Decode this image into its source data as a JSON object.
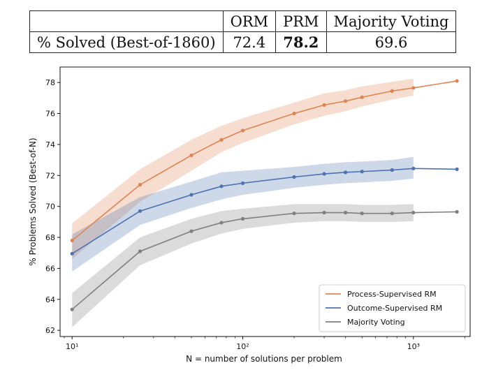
{
  "results_table": {
    "columns": [
      "ORM",
      "PRM",
      "Majority Voting"
    ],
    "row_label": "% Solved (Best-of-1860)",
    "values": [
      "72.4",
      "78.2",
      "69.6"
    ],
    "bold_column": "PRM"
  },
  "chart_data": {
    "type": "line",
    "xlabel": "N = number of solutions per problem",
    "ylabel": "% Problems Solved (Best-of-N)",
    "xscale": "log",
    "xlim": [
      8.5,
      2150
    ],
    "ylim": [
      61.6,
      79.0
    ],
    "xticks": [
      10,
      100,
      1000
    ],
    "xtick_labels": [
      "10¹",
      "10²",
      "10³"
    ],
    "yticks": [
      62,
      64,
      66,
      68,
      70,
      72,
      74,
      76,
      78
    ],
    "ytick_labels": [
      "62",
      "64",
      "66",
      "68",
      "70",
      "72",
      "74",
      "76",
      "78"
    ],
    "grid": false,
    "legend_position": "bottom-right",
    "series": [
      {
        "name": "Process-Supervised RM",
        "color": "#dd8452",
        "x": [
          10,
          25,
          50,
          75,
          100,
          200,
          300,
          400,
          500,
          750,
          1000,
          1800
        ],
        "y": [
          67.8,
          71.4,
          73.3,
          74.3,
          74.9,
          76.0,
          76.55,
          76.8,
          77.05,
          77.45,
          77.65,
          78.1
        ],
        "band_low": [
          66.6,
          70.3,
          72.3,
          73.5,
          74.1,
          75.3,
          75.85,
          76.15,
          76.45,
          76.9,
          77.15
        ],
        "band_high": [
          68.9,
          72.4,
          74.3,
          75.2,
          75.7,
          76.7,
          77.3,
          77.5,
          77.75,
          78.05,
          78.25
        ]
      },
      {
        "name": "Outcome-Supervised RM",
        "color": "#4c72b0",
        "x": [
          10,
          25,
          50,
          75,
          100,
          200,
          300,
          400,
          500,
          750,
          1000,
          1800
        ],
        "y": [
          66.95,
          69.7,
          70.75,
          71.3,
          71.5,
          71.9,
          72.1,
          72.2,
          72.25,
          72.35,
          72.45,
          72.4
        ],
        "band_low": [
          65.8,
          68.8,
          69.9,
          70.45,
          70.75,
          71.2,
          71.4,
          71.5,
          71.55,
          71.65,
          71.8
        ],
        "band_high": [
          68.2,
          70.6,
          71.6,
          72.2,
          72.3,
          72.55,
          72.75,
          72.85,
          72.9,
          73.0,
          73.2
        ]
      },
      {
        "name": "Majority Voting",
        "color": "#7f7f7f",
        "x": [
          10,
          25,
          50,
          75,
          100,
          200,
          300,
          400,
          500,
          750,
          1000,
          1800
        ],
        "y": [
          63.35,
          67.1,
          68.4,
          68.95,
          69.2,
          69.55,
          69.6,
          69.6,
          69.55,
          69.55,
          69.6,
          69.65
        ],
        "band_low": [
          62.2,
          66.2,
          67.6,
          68.25,
          68.55,
          68.95,
          69.05,
          69.05,
          69.0,
          69.0,
          69.05
        ],
        "band_high": [
          64.4,
          68.0,
          69.2,
          69.7,
          69.85,
          70.15,
          70.15,
          70.15,
          70.1,
          70.1,
          70.15
        ]
      }
    ]
  }
}
